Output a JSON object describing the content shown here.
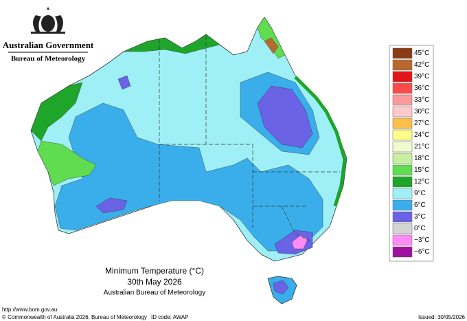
{
  "header": {
    "government": "Australian Government",
    "agency": "Bureau of Meteorology"
  },
  "title": {
    "line1": "Minimum Temperature (°C)",
    "line2": "30th May 2026",
    "line3": "Australian Bureau of Meteorology"
  },
  "legend": [
    {
      "label": "45°C",
      "color": "#8b3a16"
    },
    {
      "label": "42°C",
      "color": "#b8692e"
    },
    {
      "label": "39°C",
      "color": "#e3141a"
    },
    {
      "label": "36°C",
      "color": "#ff4a4a"
    },
    {
      "label": "33°C",
      "color": "#ff9a9a"
    },
    {
      "label": "30°C",
      "color": "#ffc9c9"
    },
    {
      "label": "27°C",
      "color": "#ffc04a"
    },
    {
      "label": "24°C",
      "color": "#ffff8a"
    },
    {
      "label": "21°C",
      "color": "#f2fbd0"
    },
    {
      "label": "18°C",
      "color": "#c8f0a0"
    },
    {
      "label": "15°C",
      "color": "#5fdc50"
    },
    {
      "label": "12°C",
      "color": "#1fa52a"
    },
    {
      "label": "9°C",
      "color": "#9ef0f6"
    },
    {
      "label": "6°C",
      "color": "#3aaeea"
    },
    {
      "label": "3°C",
      "color": "#6a63e6"
    },
    {
      "label": "0°C",
      "color": "#d4d4d4"
    },
    {
      "label": "−3°C",
      "color": "#ff8cf6"
    },
    {
      "label": "−6°C",
      "color": "#a0109e"
    }
  ],
  "footer": {
    "url": "http://www.bom.gov.au",
    "copyright": "© Commonwealth of Australia 2026, Bureau of Meteorology",
    "id_code": "ID code: AWAP",
    "issued": "Issued: 30/05/2026"
  }
}
